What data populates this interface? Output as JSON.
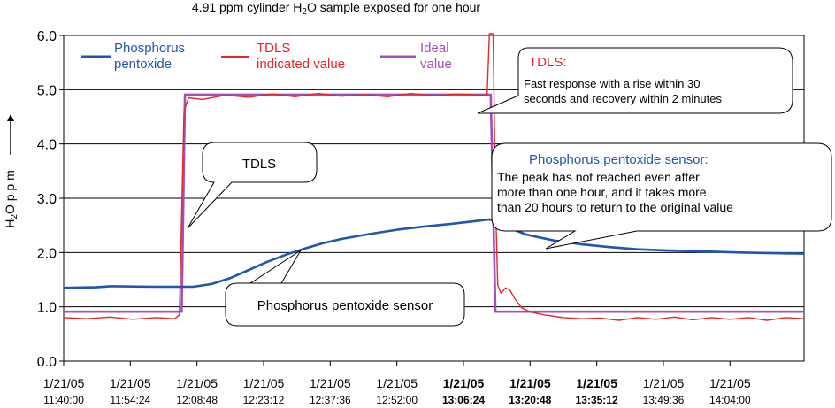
{
  "chart_data": {
    "type": "line",
    "title": "4.91 ppm cylinder H2O sample exposed for one hour",
    "title_pre": "4.91 ppm cylinder H",
    "title_sub": "2",
    "title_post": "O sample exposed for one hour",
    "ylabel": "H2O ppm",
    "ylabel_h": "H",
    "ylabel_sub": "2",
    "ylabel_rest": "O p p m",
    "xlabel": "",
    "ylim": [
      0,
      6
    ],
    "yticks": [
      "0.0",
      "1.0",
      "2.0",
      "3.0",
      "4.0",
      "5.0",
      "6.0"
    ],
    "xticks": [
      {
        "date": "1/21/05",
        "time": "11:40:00",
        "bold": false
      },
      {
        "date": "1/21/05",
        "time": "11:54:24",
        "bold": false
      },
      {
        "date": "1/21/05",
        "time": "12:08:48",
        "bold": false
      },
      {
        "date": "1/21/05",
        "time": "12:23:12",
        "bold": false
      },
      {
        "date": "1/21/05",
        "time": "12:37:36",
        "bold": false
      },
      {
        "date": "1/21/05",
        "time": "12:52:00",
        "bold": false
      },
      {
        "date": "1/21/05",
        "time": "13:06:24",
        "bold": true
      },
      {
        "date": "1/21/05",
        "time": "13:20:48",
        "bold": true
      },
      {
        "date": "1/21/05",
        "time": "13:35:12",
        "bold": true
      },
      {
        "date": "1/21/05",
        "time": "13:49:36",
        "bold": false
      },
      {
        "date": "1/21/05",
        "time": "14:04:00",
        "bold": false
      }
    ],
    "x_range_minutes": [
      0,
      160
    ],
    "x_tick_interval_minutes": 14.4,
    "legend": [
      {
        "line1": "Phosphorus",
        "line2": "pentoxide",
        "color": "#2255b0"
      },
      {
        "line1": "TDLS",
        "line2": "indicated value",
        "color": "#e8262a"
      },
      {
        "line1": "Ideal",
        "line2": "value",
        "color": "#a24fb8"
      }
    ],
    "series": [
      {
        "name": "Phosphorus pentoxide",
        "color": "#2255b0",
        "points": [
          [
            0,
            1.35
          ],
          [
            7,
            1.36
          ],
          [
            10,
            1.38
          ],
          [
            20,
            1.37
          ],
          [
            25,
            1.37
          ],
          [
            28,
            1.37
          ],
          [
            32,
            1.42
          ],
          [
            36,
            1.53
          ],
          [
            40,
            1.68
          ],
          [
            44,
            1.83
          ],
          [
            48,
            1.96
          ],
          [
            52,
            2.07
          ],
          [
            56,
            2.17
          ],
          [
            60,
            2.25
          ],
          [
            66,
            2.34
          ],
          [
            72,
            2.42
          ],
          [
            78,
            2.48
          ],
          [
            84,
            2.53
          ],
          [
            88,
            2.57
          ],
          [
            92,
            2.61
          ],
          [
            94,
            2.56
          ],
          [
            97,
            2.43
          ],
          [
            100,
            2.33
          ],
          [
            106,
            2.22
          ],
          [
            112,
            2.15
          ],
          [
            118,
            2.1
          ],
          [
            124,
            2.06
          ],
          [
            130,
            2.04
          ],
          [
            138,
            2.02
          ],
          [
            146,
            2.0
          ],
          [
            152,
            1.99
          ],
          [
            160,
            1.98
          ]
        ]
      },
      {
        "name": "TDLS indicated value",
        "color": "#e8262a",
        "points": [
          [
            0,
            0.8
          ],
          [
            5,
            0.78
          ],
          [
            10,
            0.81
          ],
          [
            15,
            0.77
          ],
          [
            20,
            0.8
          ],
          [
            24,
            0.78
          ],
          [
            25,
            0.85
          ],
          [
            26,
            4.6
          ],
          [
            27,
            4.85
          ],
          [
            30,
            4.82
          ],
          [
            35,
            4.9
          ],
          [
            40,
            4.86
          ],
          [
            45,
            4.92
          ],
          [
            50,
            4.87
          ],
          [
            55,
            4.93
          ],
          [
            60,
            4.88
          ],
          [
            65,
            4.91
          ],
          [
            70,
            4.87
          ],
          [
            75,
            4.93
          ],
          [
            80,
            4.89
          ],
          [
            85,
            4.92
          ],
          [
            90,
            4.9
          ],
          [
            91.5,
            4.9
          ],
          [
            92,
            6.1
          ],
          [
            92.8,
            6.1
          ],
          [
            93.3,
            3.0
          ],
          [
            93.8,
            1.4
          ],
          [
            94.5,
            1.25
          ],
          [
            95.5,
            1.35
          ],
          [
            96.5,
            1.3
          ],
          [
            97.5,
            1.15
          ],
          [
            99,
            0.98
          ],
          [
            101,
            0.9
          ],
          [
            104,
            0.85
          ],
          [
            108,
            0.8
          ],
          [
            112,
            0.78
          ],
          [
            116,
            0.79
          ],
          [
            120,
            0.75
          ],
          [
            124,
            0.8
          ],
          [
            128,
            0.77
          ],
          [
            132,
            0.81
          ],
          [
            136,
            0.76
          ],
          [
            140,
            0.8
          ],
          [
            144,
            0.77
          ],
          [
            148,
            0.8
          ],
          [
            152,
            0.75
          ],
          [
            156,
            0.8
          ],
          [
            160,
            0.78
          ]
        ]
      },
      {
        "name": "Ideal value",
        "color": "#a24fb8",
        "points": [
          [
            0,
            0.91
          ],
          [
            25.5,
            0.91
          ],
          [
            26.2,
            4.91
          ],
          [
            92.3,
            4.91
          ],
          [
            93.3,
            0.91
          ],
          [
            160,
            0.91
          ]
        ]
      }
    ],
    "hlines": [
      1.0,
      2.0,
      3.0,
      4.0,
      5.0,
      6.0
    ],
    "annotations": [
      {
        "id": "tdls_fast",
        "title": "TDLS:",
        "lines": [
          "Fast response with a rise within 30",
          "seconds and recovery within 2 minutes"
        ],
        "title_color": "#e8262a"
      },
      {
        "id": "tdls_label",
        "title": "",
        "lines": [
          "TDLS"
        ],
        "title_color": "#000000"
      },
      {
        "id": "p2o5_sensor_note",
        "title": "Phosphorus pentoxide sensor:",
        "lines": [
          "The peak has not reached even after",
          "more than one hour, and it takes more",
          "than 20 hours to return to the original value"
        ],
        "title_color": "#2255b0"
      },
      {
        "id": "p2o5_label",
        "title": "",
        "lines": [
          "Phosphorus pentoxide sensor"
        ],
        "title_color": "#000000"
      }
    ]
  }
}
